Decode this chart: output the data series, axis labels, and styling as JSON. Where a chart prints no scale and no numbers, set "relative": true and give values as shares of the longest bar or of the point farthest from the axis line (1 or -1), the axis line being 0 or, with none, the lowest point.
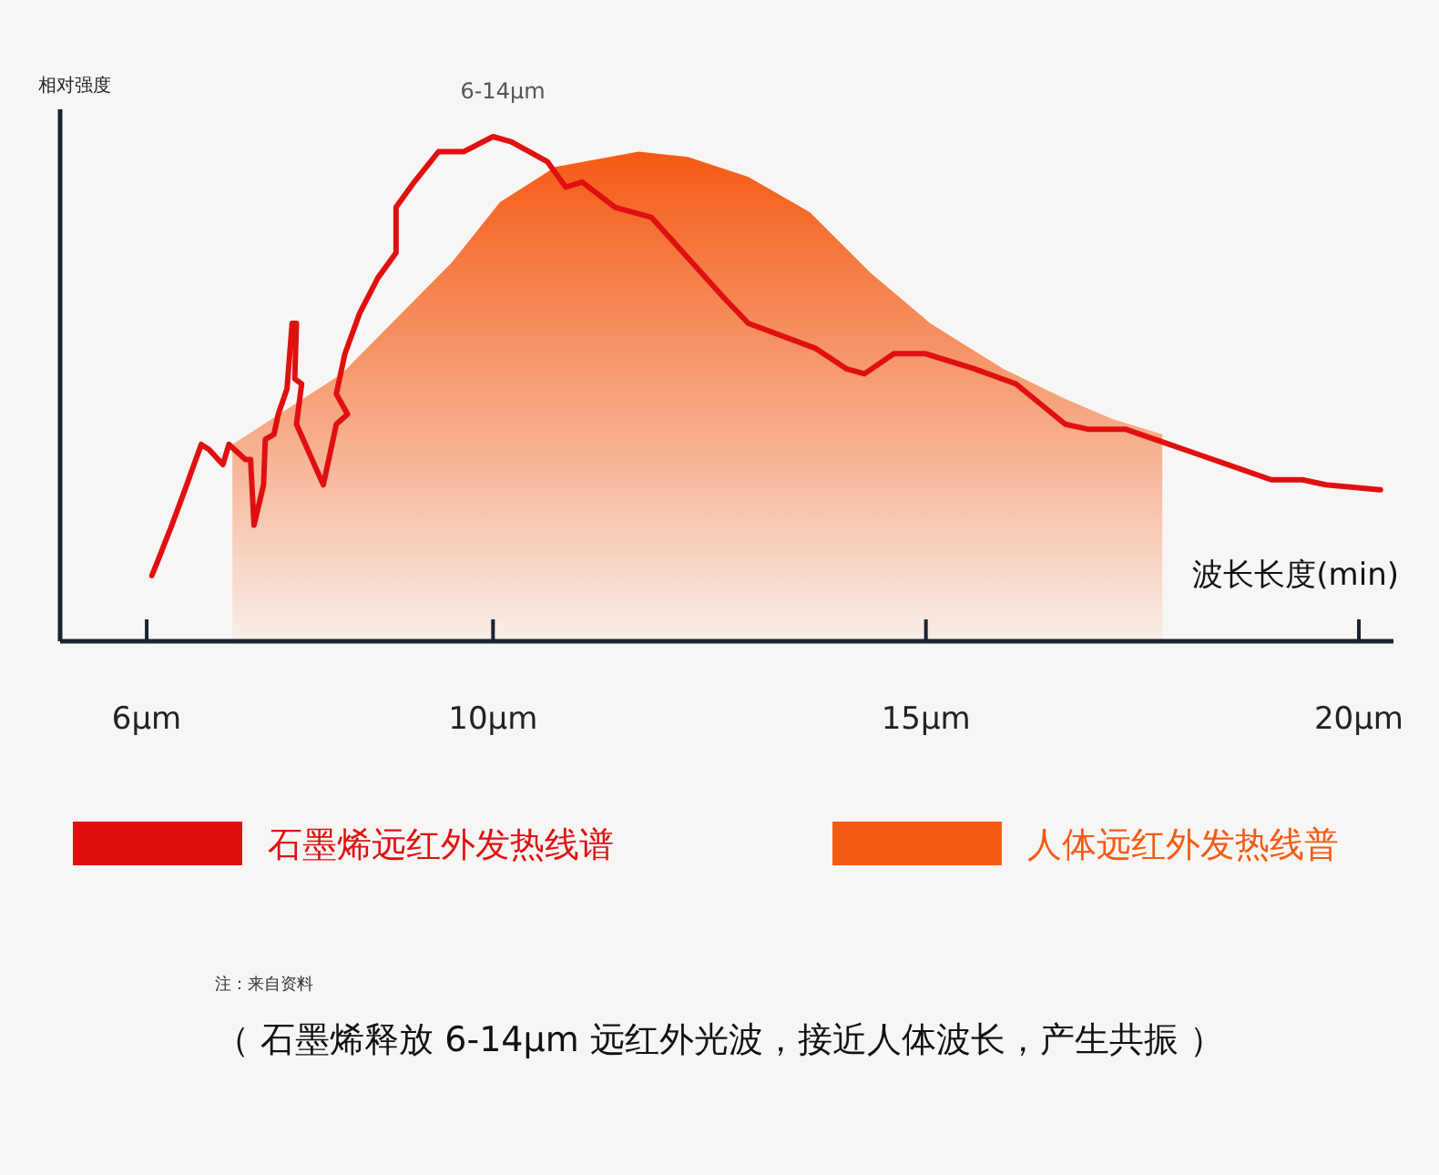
{
  "chart_data": {
    "type": "line",
    "relative": true,
    "ylabel": "相对强度",
    "xlabel": "波长长度(min)",
    "xlim": [
      5,
      20.4
    ],
    "xticks": [
      {
        "value": 6,
        "label": "6μm"
      },
      {
        "value": 10,
        "label": "10μm"
      },
      {
        "value": 15,
        "label": "15μm"
      },
      {
        "value": 20,
        "label": "20μm"
      }
    ],
    "legend": "bottom",
    "annotations": [
      "6-14μm",
      "注：来自资料",
      "（ 石墨烯释放 6-14μm 远红外光波，接近人体波长，产生共振 ）"
    ],
    "series": [
      {
        "name": "石墨烯远红外发热线谱",
        "color": "#e01010",
        "x": [
          6.06,
          6.13,
          6.29,
          6.42,
          6.63,
          6.72,
          6.88,
          6.95,
          7.14,
          7.2,
          7.24,
          7.35,
          7.37,
          7.47,
          7.52,
          7.62,
          7.68,
          7.73,
          7.71,
          7.79,
          7.73,
          8.04,
          8.19,
          8.32,
          8.19,
          8.29,
          8.46,
          8.67,
          8.88,
          8.88,
          9.09,
          9.37,
          9.66,
          10.0,
          10.21,
          10.63,
          10.84,
          11.03,
          11.41,
          11.83,
          12.67,
          12.95,
          13.73,
          14.08,
          14.29,
          14.63,
          14.99,
          15.56,
          16.04,
          16.61,
          16.88,
          17.31,
          18.15,
          18.99,
          19.35,
          19.62,
          20.25
        ],
        "values": [
          0.13,
          0.16,
          0.23,
          0.29,
          0.39,
          0.38,
          0.35,
          0.39,
          0.36,
          0.36,
          0.23,
          0.31,
          0.4,
          0.41,
          0.45,
          0.5,
          0.63,
          0.63,
          0.52,
          0.51,
          0.43,
          0.31,
          0.43,
          0.45,
          0.49,
          0.57,
          0.65,
          0.72,
          0.77,
          0.86,
          0.91,
          0.97,
          0.97,
          1.0,
          0.99,
          0.95,
          0.9,
          0.91,
          0.86,
          0.84,
          0.68,
          0.63,
          0.58,
          0.54,
          0.53,
          0.57,
          0.57,
          0.54,
          0.51,
          0.43,
          0.42,
          0.42,
          0.37,
          0.32,
          0.32,
          0.31,
          0.3
        ]
      },
      {
        "name": "人体远红外发热线普",
        "type": "area",
        "color": "#f55a14",
        "x": [
          6.99,
          8.25,
          9.52,
          10.08,
          10.72,
          11.68,
          12.25,
          12.95,
          13.66,
          14.36,
          15.05,
          15.89,
          16.61,
          17.16,
          17.73
        ],
        "values": [
          0.39,
          0.53,
          0.75,
          0.87,
          0.94,
          0.97,
          0.96,
          0.92,
          0.85,
          0.73,
          0.63,
          0.54,
          0.48,
          0.44,
          0.41
        ]
      }
    ]
  }
}
